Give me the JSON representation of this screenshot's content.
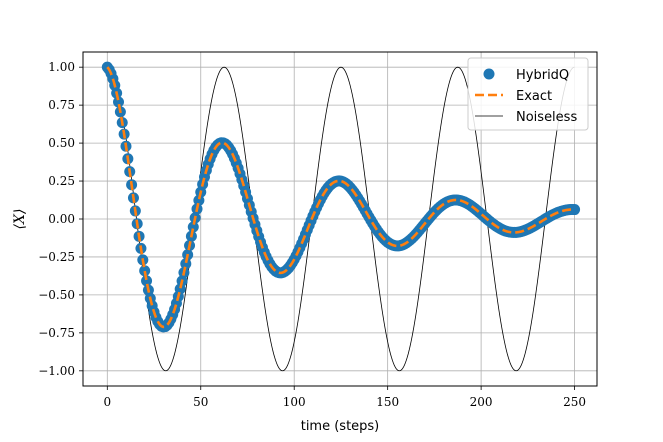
{
  "chart_data": {
    "type": "line",
    "title": "",
    "xlabel": "time (steps)",
    "ylabel": "⟨X⟩",
    "xlim": [
      -13,
      262
    ],
    "ylim": [
      -1.1,
      1.1
    ],
    "xticks": [
      0,
      50,
      100,
      150,
      200,
      250
    ],
    "yticks": [
      1.0,
      0.75,
      0.5,
      0.25,
      0.0,
      -0.25,
      -0.5,
      -0.75,
      -1.0
    ],
    "ytick_labels": [
      "1.00",
      "0.75",
      "0.50",
      "0.25",
      "0.00",
      "−0.25",
      "−0.50",
      "−0.75",
      "−1.00"
    ],
    "grid": true,
    "legend_position": "top-right",
    "model": {
      "period_steps": 62.5,
      "damping_time_steps": 90,
      "t_start": 0,
      "t_end": 250
    },
    "series": [
      {
        "name": "HybridQ",
        "style": "markers",
        "color": "#1f77b4",
        "step": 1
      },
      {
        "name": "Exact",
        "style": "dashed",
        "color": "#ff7f0e",
        "step": 1
      },
      {
        "name": "Noiseless",
        "style": "line",
        "color": "#000000",
        "step": 1
      }
    ]
  }
}
